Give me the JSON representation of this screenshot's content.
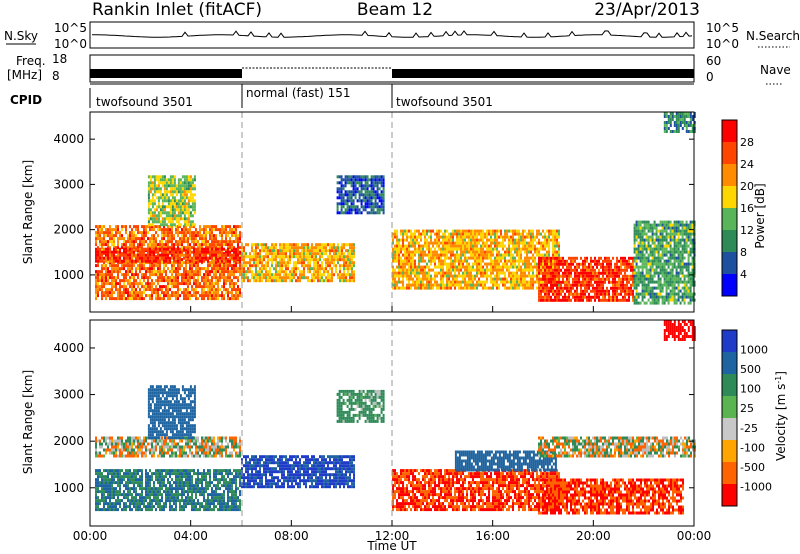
{
  "header": {
    "site": "Rankin Inlet (fitACF)",
    "beam": "Beam 12",
    "date": "23/Apr/2013"
  },
  "panel_labels": {
    "nsky": "N.Sky",
    "nsearch": "N.Search",
    "freq_line1": "Freq.",
    "freq_line2": "[MHz]",
    "nave": "Nave",
    "cpid": "CPID",
    "nsky_ticks": [
      "10^5",
      "10^0"
    ],
    "nsearch_ticks": [
      "10^5",
      "10^0"
    ],
    "freq_ticks": [
      "18",
      "8"
    ],
    "nave_ticks": [
      "60",
      "0"
    ]
  },
  "colors": {
    "power_scale": [
      "#0000ff",
      "#1e50a0",
      "#2e8b57",
      "#5ab45a",
      "#ffd700",
      "#ff8c00",
      "#ff4500",
      "#ff0000"
    ],
    "velocity_scale": [
      "#1e3cc8",
      "#1e64a0",
      "#2e8b57",
      "#5ab450",
      "#c8c8c8",
      "#ffa500",
      "#ff6400",
      "#ff0000"
    ],
    "ground_scatter": "#bebebe"
  },
  "chart_data": [
    {
      "type": "table",
      "name": "CPID",
      "rows": [
        {
          "label": "twofsound 3501",
          "start": "00:00",
          "end": "06:00"
        },
        {
          "label": "normal (fast) 151",
          "start": "06:00",
          "end": "12:00"
        },
        {
          "label": "twofsound 3501",
          "start": "12:00",
          "end": "24:00"
        }
      ]
    },
    {
      "type": "heatmap",
      "name": "power",
      "ylabel": "Slant Range [km]",
      "xlabel": "",
      "x_ticks": [
        "00:00",
        "04:00",
        "08:00",
        "12:00",
        "16:00",
        "20:00",
        "00:00"
      ],
      "y_ticks": [
        1000,
        2000,
        3000,
        4000
      ],
      "ylim": [
        180,
        4600
      ],
      "colorbar": {
        "label": "Power [dB]",
        "ticks": [
          4,
          8,
          12,
          16,
          20,
          24,
          28
        ],
        "range": [
          0,
          32
        ]
      },
      "regions": [
        {
          "t_start": 0.2,
          "t_end": 6.0,
          "r_min": 500,
          "r_max": 2100,
          "level": 24
        },
        {
          "t_start": 0.2,
          "t_end": 6.0,
          "r_min": 1300,
          "r_max": 1600,
          "level": 28
        },
        {
          "t_start": 2.3,
          "t_end": 4.2,
          "r_min": 2100,
          "r_max": 3200,
          "level": 16
        },
        {
          "t_start": 6.0,
          "t_end": 10.5,
          "r_min": 900,
          "r_max": 1700,
          "level": 20
        },
        {
          "t_start": 9.8,
          "t_end": 11.7,
          "r_min": 2400,
          "r_max": 3200,
          "level": 6
        },
        {
          "t_start": 12.0,
          "t_end": 18.6,
          "r_min": 700,
          "r_max": 2000,
          "level": 20
        },
        {
          "t_start": 17.8,
          "t_end": 21.6,
          "r_min": 450,
          "r_max": 1400,
          "level": 28
        },
        {
          "t_start": 21.6,
          "t_end": 24.0,
          "r_min": 400,
          "r_max": 2200,
          "level": 12
        },
        {
          "t_start": 22.8,
          "t_end": 24.0,
          "r_min": 4200,
          "r_max": 4600,
          "level": 10
        }
      ]
    },
    {
      "type": "heatmap",
      "name": "velocity",
      "ylabel": "Slant Range [km]",
      "xlabel": "Time UT",
      "x_ticks": [
        "00:00",
        "04:00",
        "08:00",
        "12:00",
        "16:00",
        "20:00",
        "00:00"
      ],
      "y_ticks": [
        1000,
        2000,
        3000,
        4000
      ],
      "ylim": [
        180,
        4600
      ],
      "colorbar": {
        "label": "Velocity [m s^-1]",
        "ticks": [
          1000,
          500,
          100,
          25,
          -25,
          -100,
          -500,
          -1000
        ]
      },
      "regions": [
        {
          "t_start": 0.2,
          "t_end": 6.0,
          "r_min": 500,
          "r_max": 1400,
          "vel": 300
        },
        {
          "t_start": 0.2,
          "t_end": 6.0,
          "r_min": 1700,
          "r_max": 2100,
          "vel": 0
        },
        {
          "t_start": 2.3,
          "t_end": 4.2,
          "r_min": 2100,
          "r_max": 3200,
          "vel": 600
        },
        {
          "t_start": 6.0,
          "t_end": 10.5,
          "r_min": 1000,
          "r_max": 1700,
          "vel": 800
        },
        {
          "t_start": 9.8,
          "t_end": 11.7,
          "r_min": 2400,
          "r_max": 3100,
          "vel": 150
        },
        {
          "t_start": 12.0,
          "t_end": 18.6,
          "r_min": 500,
          "r_max": 1400,
          "vel": -300
        },
        {
          "t_start": 14.5,
          "t_end": 18.5,
          "r_min": 1400,
          "r_max": 1800,
          "vel": 500
        },
        {
          "t_start": 17.8,
          "t_end": 24.0,
          "r_min": 1700,
          "r_max": 2100,
          "vel": 0
        },
        {
          "t_start": 17.8,
          "t_end": 23.6,
          "r_min": 450,
          "r_max": 1200,
          "vel": -300
        },
        {
          "t_start": 22.8,
          "t_end": 24.0,
          "r_min": 4200,
          "r_max": 4600,
          "vel": -700
        }
      ]
    }
  ]
}
